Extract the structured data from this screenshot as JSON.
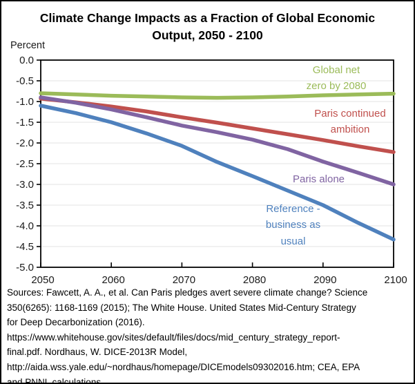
{
  "title": "Climate Change Impacts as a Fraction of Global Economic\nOutput, 2050 - 2100",
  "y_axis_label": "Percent",
  "chart_data": {
    "type": "line",
    "x": [
      2050,
      2055,
      2060,
      2065,
      2070,
      2075,
      2080,
      2085,
      2090,
      2095,
      2100
    ],
    "series": [
      {
        "name": "Global net zero by 2080",
        "color": "#9BBB59",
        "values": [
          -0.8,
          -0.83,
          -0.86,
          -0.88,
          -0.9,
          -0.91,
          -0.9,
          -0.88,
          -0.85,
          -0.83,
          -0.81
        ]
      },
      {
        "name": "Paris continued ambition",
        "color": "#C0504D",
        "values": [
          -0.93,
          -1.02,
          -1.12,
          -1.24,
          -1.38,
          -1.51,
          -1.65,
          -1.79,
          -1.93,
          -2.08,
          -2.22
        ]
      },
      {
        "name": "Paris alone",
        "color": "#8064A2",
        "values": [
          -0.9,
          -1.03,
          -1.19,
          -1.38,
          -1.58,
          -1.74,
          -1.92,
          -2.15,
          -2.45,
          -2.72,
          -3.0
        ]
      },
      {
        "name": "Reference - business as usual",
        "color": "#4F81BD",
        "values": [
          -1.1,
          -1.28,
          -1.5,
          -1.77,
          -2.07,
          -2.46,
          -2.8,
          -3.15,
          -3.5,
          -3.93,
          -4.33
        ]
      }
    ],
    "xlim": [
      2050,
      2100
    ],
    "ylim": [
      -5.0,
      0.0
    ],
    "x_ticks": [
      "2050",
      "2060",
      "2070",
      "2080",
      "2090",
      "2100"
    ],
    "y_ticks": [
      "0.0",
      "-0.5",
      "-1.0",
      "-1.5",
      "-2.0",
      "-2.5",
      "-3.0",
      "-3.5",
      "-4.0",
      "-4.5",
      "-5.0"
    ],
    "grid": true,
    "legend_position": "inline-annotations"
  },
  "annotations": [
    {
      "text": "Global net\nzero by 2080",
      "color": "#9BBB59"
    },
    {
      "text": "Paris continued\nambition",
      "color": "#C0504D"
    },
    {
      "text": "Paris alone",
      "color": "#8064A2"
    },
    {
      "text": "Reference -\nbusiness as\nusual",
      "color": "#4F81BD"
    }
  ],
  "sources": "Sources: Fawcett, A. A., et al. Can Paris pledges avert severe climate change? Science\n350(6265): 1168-1169 (2015); The White House. United States Mid-Century Strategy\nfor Deep Decarbonization (2016).\nhttps://www.whitehouse.gov/sites/default/files/docs/mid_century_strategy_report-\nfinal.pdf. Nordhaus, W. DICE-2013R Model,\nhttp://aida.wss.yale.edu/~nordhaus/homepage/DICEmodels09302016.htm; CEA, EPA\nand PNNL calculations."
}
